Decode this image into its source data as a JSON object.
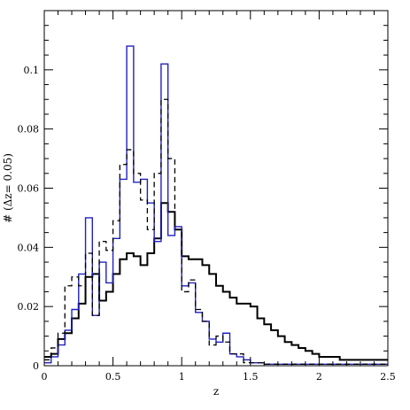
{
  "chart_data": {
    "type": "line",
    "title": "",
    "xlabel": "z",
    "ylabel": "# (Δz= 0.05)",
    "xlim": [
      0,
      2.5
    ],
    "ylim": [
      0,
      0.12
    ],
    "x_ticks": [
      "0",
      "0.5",
      "1",
      "1.5",
      "2",
      "2.5"
    ],
    "y_ticks": [
      "0",
      "0.02",
      "0.04",
      "0.06",
      "0.08",
      "0.1"
    ],
    "y_tick_values": [
      0,
      0.02,
      0.04,
      0.06,
      0.08,
      0.1
    ],
    "x_tick_values": [
      0,
      0.5,
      1,
      1.5,
      2,
      2.5
    ],
    "grid": false,
    "legend": "none",
    "bin_edges": [
      0,
      0.05,
      0.1,
      0.15,
      0.2,
      0.25,
      0.3,
      0.35,
      0.4,
      0.45,
      0.5,
      0.55,
      0.6,
      0.65,
      0.7,
      0.75,
      0.8,
      0.85,
      0.9,
      0.95,
      1.0,
      1.05,
      1.1,
      1.15,
      1.2,
      1.25,
      1.3,
      1.35,
      1.4,
      1.45,
      1.5,
      1.55,
      1.6,
      1.65,
      1.7,
      1.75,
      1.8,
      1.85,
      1.9,
      1.95,
      2.0,
      2.05,
      2.1,
      2.15,
      2.2,
      2.25,
      2.3,
      2.35,
      2.4,
      2.45,
      2.5
    ],
    "series": [
      {
        "style": "solid-black",
        "color": "#000000",
        "values": [
          0.003,
          0.004,
          0.009,
          0.011,
          0.016,
          0.021,
          0.03,
          0.031,
          0.022,
          0.025,
          0.031,
          0.036,
          0.038,
          0.037,
          0.034,
          0.038,
          0.043,
          0.055,
          0.052,
          0.046,
          0.037,
          0.036,
          0.036,
          0.034,
          0.031,
          0.027,
          0.025,
          0.023,
          0.021,
          0.021,
          0.02,
          0.016,
          0.014,
          0.012,
          0.01,
          0.008,
          0.007,
          0.006,
          0.005,
          0.004,
          0.003,
          0.003,
          0.003,
          0.002,
          0.002,
          0.002,
          0.002,
          0.002,
          0.002,
          0.002
        ]
      },
      {
        "style": "solid-blue",
        "color": "#2020c0",
        "values": [
          0.001,
          0.003,
          0.007,
          0.012,
          0.019,
          0.031,
          0.05,
          0.017,
          0.035,
          0.028,
          0.043,
          0.063,
          0.108,
          0.062,
          0.063,
          0.055,
          0.042,
          0.102,
          0.044,
          0.047,
          0.027,
          0.028,
          0.018,
          0.015,
          0.009,
          0.008,
          0.011,
          0.004,
          0.003,
          0.002,
          0.001,
          0.001,
          0.0005,
          0.0005,
          0.0005,
          0.0005,
          0.0005,
          0.0005,
          0.0005,
          0.0005,
          0.0005,
          0.0005,
          0.0005,
          0.0005,
          0.0005,
          0.0005,
          0.0005,
          0.0005,
          0.0005,
          0.0005
        ]
      },
      {
        "style": "dashed-black",
        "color": "#000000",
        "values": [
          0.002,
          0.006,
          0.011,
          0.027,
          0.03,
          0.027,
          0.038,
          0.017,
          0.042,
          0.039,
          0.049,
          0.068,
          0.073,
          0.065,
          0.056,
          0.046,
          0.065,
          0.09,
          0.07,
          0.046,
          0.025,
          0.029,
          0.019,
          0.015,
          0.007,
          0.01,
          0.008,
          0.004,
          0.004,
          0.001,
          0.001,
          0.001,
          0.0005,
          0.0005,
          0.0005,
          0.0005,
          0.0005,
          0.0005,
          0.0005,
          0.0005,
          0.0005,
          0.0005,
          0.0005,
          0.0005,
          0.0005,
          0.0005,
          0.0005,
          0.0005,
          0.0005,
          0.0005
        ]
      }
    ]
  }
}
